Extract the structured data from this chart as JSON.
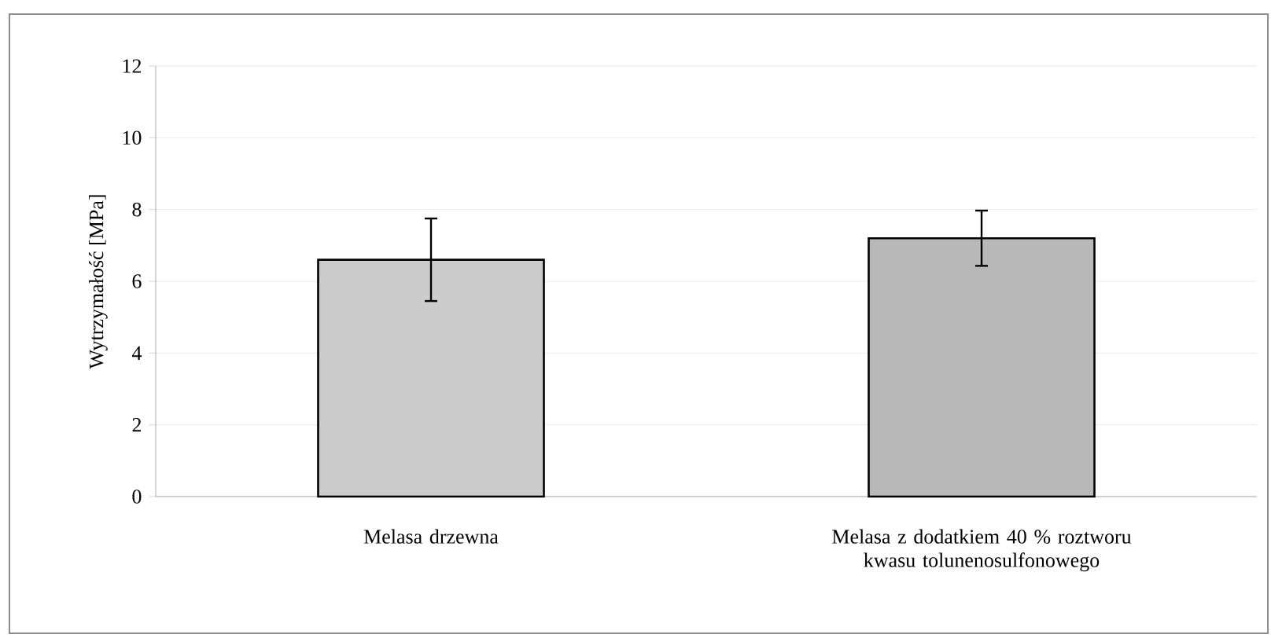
{
  "chart_data": {
    "type": "bar",
    "ylabel": "Wytrzymałość [MPa]",
    "categories": [
      "Melasa drzewna",
      "Melasa z dodatkiem 40 % roztworu kwasu tolunenosulfonowego"
    ],
    "values": [
      6.6,
      7.2
    ],
    "errors": [
      1.15,
      0.77
    ],
    "colors": [
      "#cccccc",
      "#b8b8b8"
    ],
    "ylim": [
      0,
      12
    ],
    "yticks": [
      0,
      2,
      4,
      6,
      8,
      10,
      12
    ],
    "grid": "y"
  }
}
